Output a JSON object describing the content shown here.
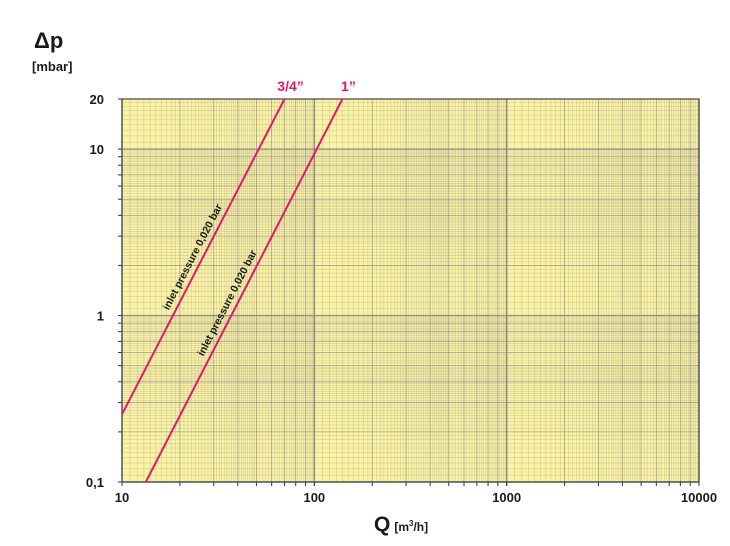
{
  "chart_data": {
    "type": "line",
    "title": "",
    "ylabel_symbol": "Δp",
    "ylabel_unit": "[mbar]",
    "xlabel_symbol": "Q",
    "xlabel_unit_pre": "[m",
    "xlabel_unit_sup": "3",
    "xlabel_unit_post": "/h]",
    "x_scale": "log",
    "y_scale": "log",
    "xlim": [
      10,
      10000
    ],
    "ylim": [
      0.1,
      20
    ],
    "x_ticks": [
      {
        "value": 10,
        "label": "10"
      },
      {
        "value": 100,
        "label": "100"
      },
      {
        "value": 1000,
        "label": "1000"
      },
      {
        "value": 10000,
        "label": "10000"
      }
    ],
    "y_ticks": [
      {
        "value": 0.1,
        "label": "0,1"
      },
      {
        "value": 1,
        "label": "1"
      },
      {
        "value": 10,
        "label": "10"
      },
      {
        "value": 20,
        "label": "20"
      }
    ],
    "grid": true,
    "background_color": "#fbf3a3",
    "grid_color": "#8a8a8a",
    "line_color": "#e0196e",
    "series": [
      {
        "name": "3/4”",
        "annotation": "inlet pressure 0,020 bar",
        "points": [
          [
            10,
            0.255
          ],
          [
            70,
            20
          ]
        ]
      },
      {
        "name": "1”",
        "annotation": "inlet pressure 0,020 bar",
        "points": [
          [
            13.3,
            0.1
          ],
          [
            140,
            20
          ]
        ]
      }
    ]
  }
}
